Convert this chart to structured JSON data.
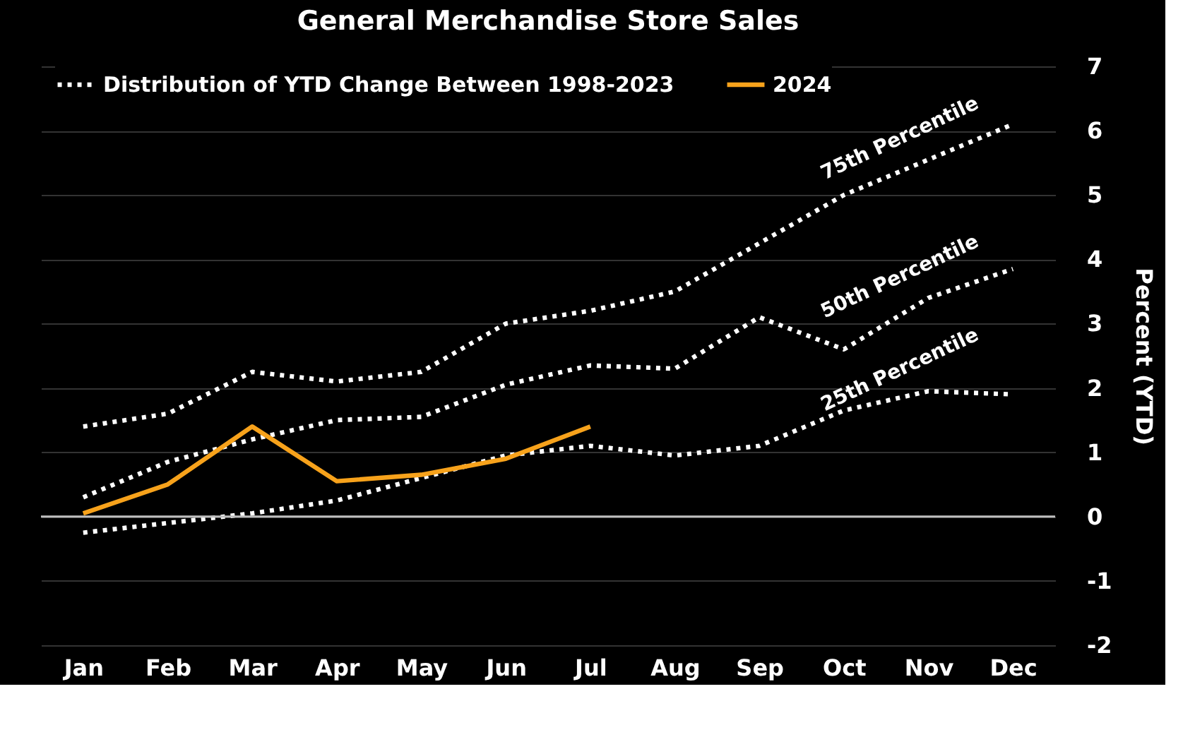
{
  "chart_data": {
    "type": "line",
    "title": "General Merchandise Store Sales",
    "ylabel": "Percent (YTD)",
    "categories": [
      "Jan",
      "Feb",
      "Mar",
      "Apr",
      "May",
      "Jun",
      "Jul",
      "Aug",
      "Sep",
      "Oct",
      "Nov",
      "Dec"
    ],
    "series": [
      {
        "name": "Distribution of YTD Change Between 1998-2023",
        "color": "#ffffff",
        "line_style": "dotted",
        "values": [
          1.4,
          1.6,
          2.25,
          2.1,
          2.25,
          3.0,
          3.2,
          3.5,
          4.25,
          5.0,
          5.55,
          6.1
        ]
      },
      {
        "color": "#ffffff",
        "line_style": "dotted",
        "values": [
          0.3,
          0.85,
          1.2,
          1.5,
          1.55,
          2.05,
          2.35,
          2.3,
          3.1,
          2.6,
          3.4,
          3.85
        ]
      },
      {
        "color": "#ffffff",
        "line_style": "dotted",
        "values": [
          -0.25,
          -0.1,
          0.05,
          0.25,
          0.6,
          0.95,
          1.1,
          0.95,
          1.1,
          1.65,
          1.95,
          1.9
        ]
      },
      {
        "name": "2024",
        "color": "#f7a21b",
        "line_style": "solid",
        "values": [
          0.05,
          0.5,
          1.4,
          0.55,
          0.65,
          0.9,
          1.4,
          null,
          null,
          null,
          null,
          null
        ]
      }
    ],
    "annotations": [
      {
        "text": "75th Percentile",
        "x": "Nov",
        "y": 5.55
      },
      {
        "text": "50th Percentile",
        "x": "Nov",
        "y": 3.4
      },
      {
        "text": "25th Percentile",
        "x": "Nov",
        "y": 1.95
      }
    ],
    "ylim": [
      -2,
      7
    ],
    "yticks": [
      -2,
      -1,
      0,
      1,
      2,
      3,
      4,
      5,
      6,
      7
    ],
    "ref_lines": [
      {
        "axis": "y",
        "value": 0,
        "color": "#bfbfbf"
      }
    ],
    "grid": "y",
    "legend": "top left",
    "marker": "none"
  }
}
